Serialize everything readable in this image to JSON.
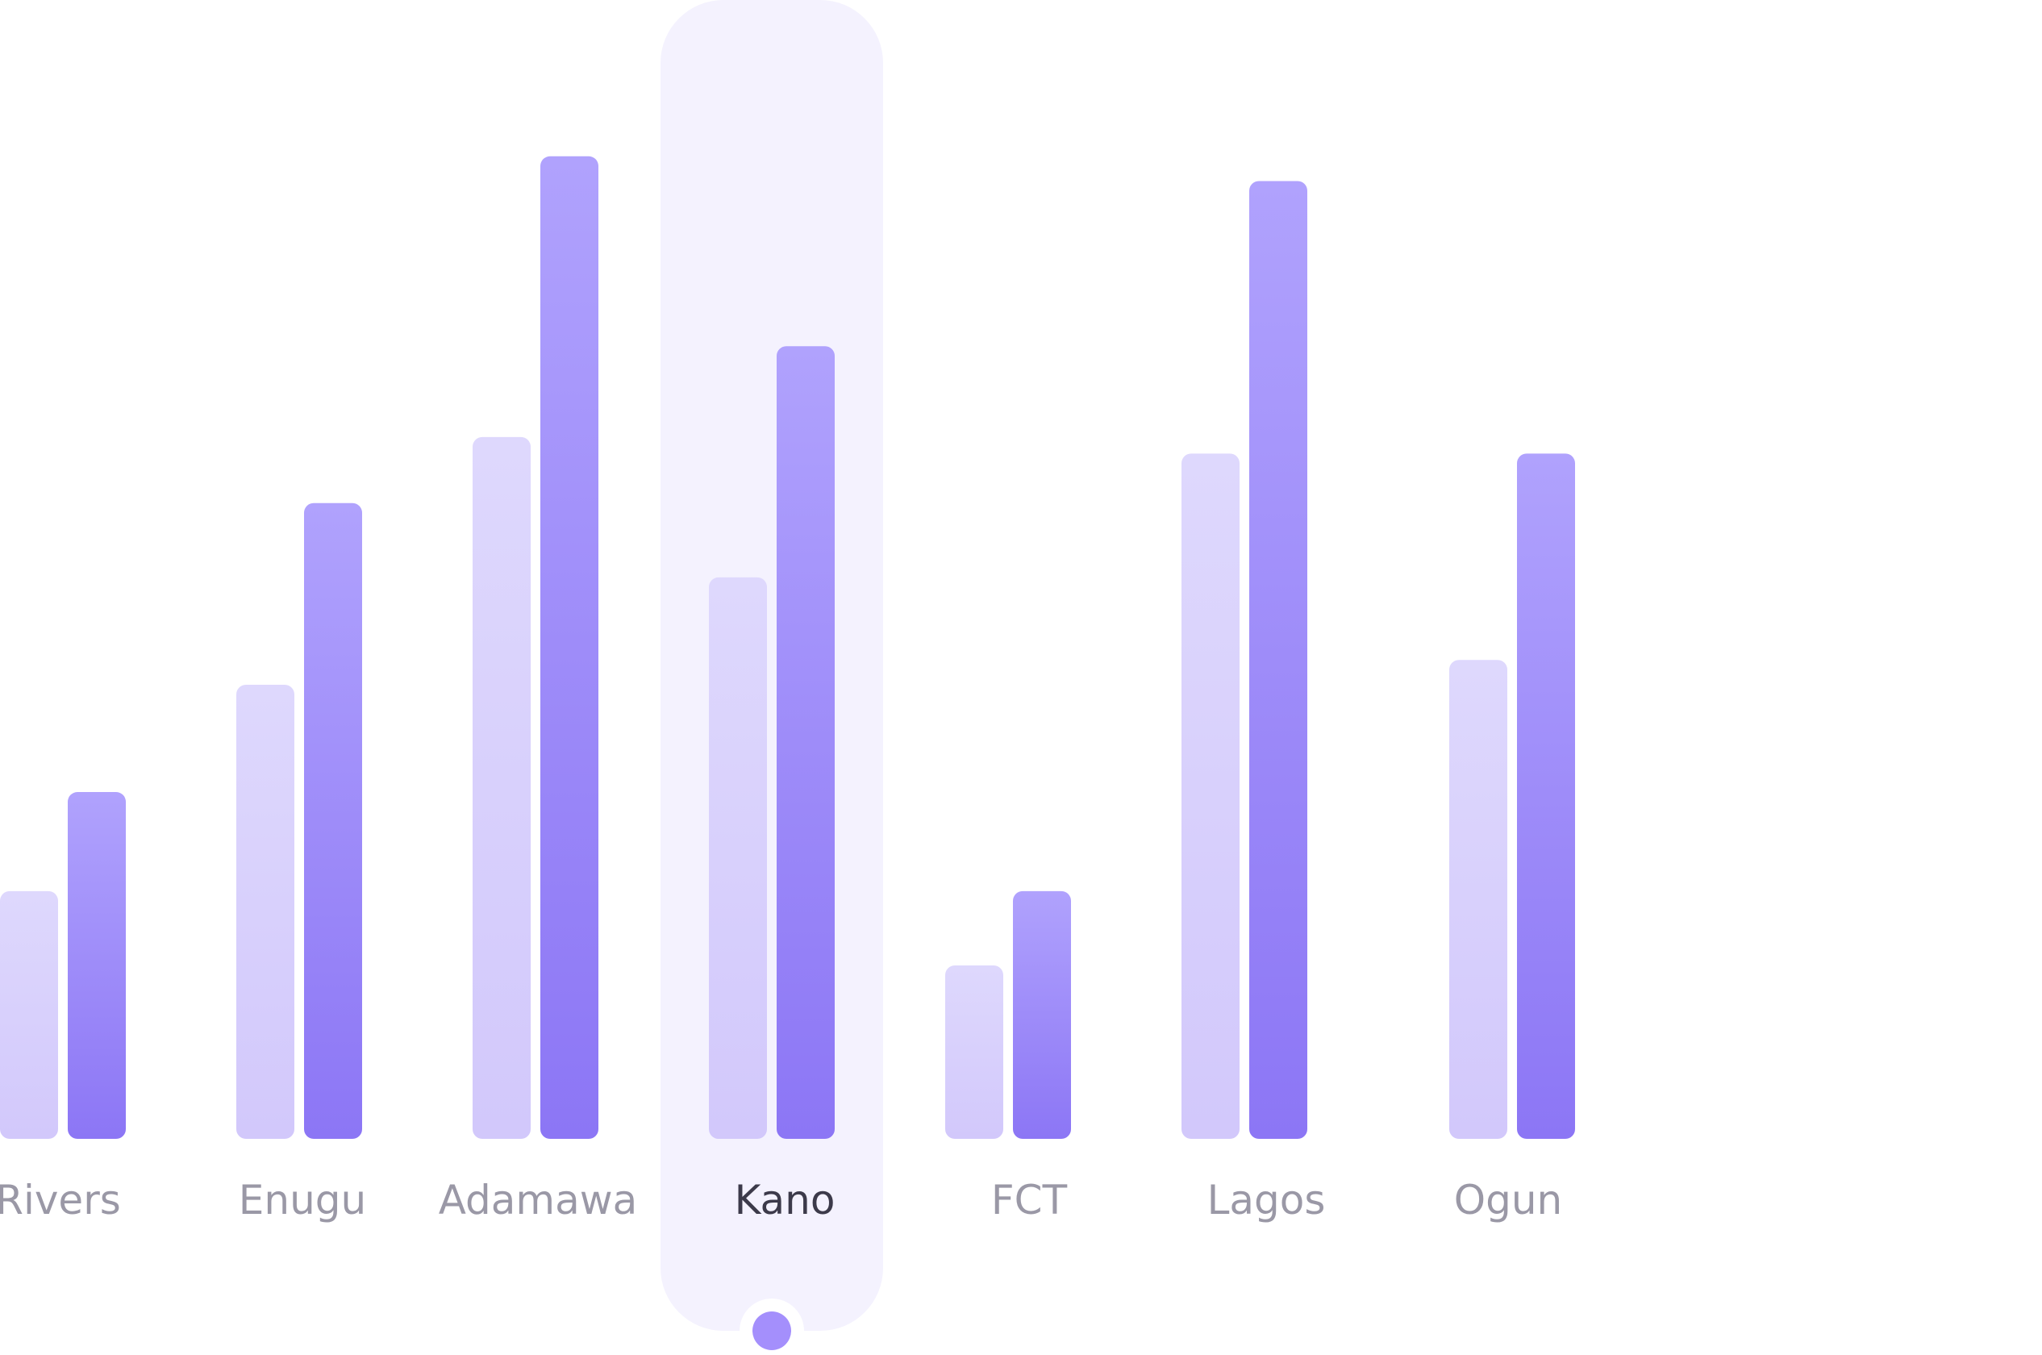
{
  "chart_data": {
    "type": "bar",
    "categories": [
      "Rivers",
      "Enugu",
      "Adamawa",
      "Kano",
      "FCT",
      "Lagos",
      "Ogun"
    ],
    "series": [
      {
        "values": [
          30,
          55,
          85,
          68,
          21,
          83,
          58
        ]
      },
      {
        "values": [
          42,
          77,
          119,
          96,
          30,
          116,
          83
        ]
      }
    ],
    "ylim": [
      0,
      135
    ],
    "selected_category": "Kano",
    "colors": {
      "series_light_top": "#ded8fd",
      "series_light_bottom": "#d2c8fb",
      "series_dark_top": "#b0a2fd",
      "series_dark_bottom": "#8c76f5",
      "highlight_panel": "#f4f2fe",
      "label_default": "#9a98a6",
      "label_selected": "#3c3a4a",
      "marker_dot": "#a48ffc"
    }
  }
}
